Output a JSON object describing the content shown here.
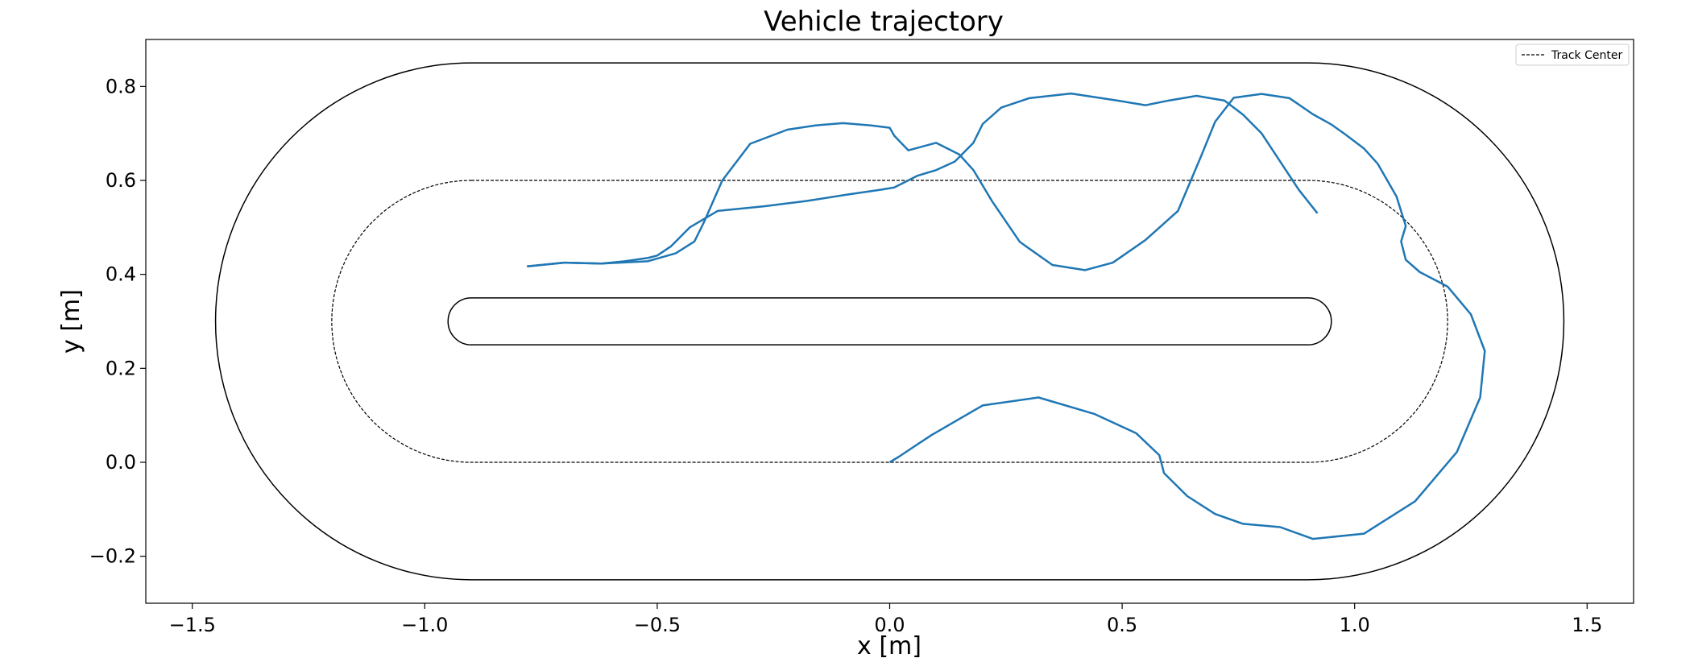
{
  "chart_data": {
    "type": "line",
    "title": "Vehicle trajectory",
    "xlabel": "x [m]",
    "ylabel": "y [m]",
    "xlim": [
      -1.6,
      1.6
    ],
    "ylim": [
      -0.3,
      0.9
    ],
    "xticks": [
      -1.5,
      -1.0,
      -0.5,
      0.0,
      0.5,
      1.0,
      1.5
    ],
    "xtick_labels": [
      "−1.5",
      "−1.0",
      "−0.5",
      "0.0",
      "0.5",
      "1.0",
      "1.5"
    ],
    "yticks": [
      -0.2,
      0.0,
      0.2,
      0.4,
      0.6,
      0.8
    ],
    "ytick_labels": [
      "−0.2",
      "0.0",
      "0.2",
      "0.4",
      "0.6",
      "0.8"
    ],
    "grid": false,
    "legend": {
      "position": "top-right",
      "entries": [
        "Track Center"
      ]
    },
    "track": {
      "inner_boundary": {
        "x_start": -0.9,
        "x_end": 0.9,
        "y_bottom": 0.25,
        "y_top": 0.35,
        "color": "#000000"
      },
      "center_line": {
        "x_start": -0.9,
        "x_end": 0.9,
        "y_bottom": 0.0,
        "y_top": 0.6,
        "color": "#000000",
        "dashed": true
      },
      "outer_boundary": {
        "x_start": -0.9,
        "x_end": 0.9,
        "y_bottom": -0.25,
        "y_top": 0.85,
        "color": "#000000"
      }
    },
    "series": [
      {
        "color": "#1f77b4",
        "x": [
          -0.78,
          -0.7,
          -0.62,
          -0.52,
          -0.46,
          -0.42,
          -0.4,
          -0.36,
          -0.3,
          -0.22,
          -0.16,
          -0.1,
          -0.04,
          0.0,
          0.01,
          0.04,
          0.1,
          0.15,
          0.18,
          0.22,
          0.28,
          0.35,
          0.42,
          0.48,
          0.55,
          0.62,
          0.67,
          0.7,
          0.74,
          0.8,
          0.86,
          0.91,
          0.95,
          0.98,
          1.02,
          1.05,
          1.09,
          1.11,
          1.1,
          1.11,
          1.14,
          1.2,
          1.25,
          1.28,
          1.27,
          1.22,
          1.13,
          1.02,
          0.91,
          0.84,
          0.76,
          0.7,
          0.64,
          0.59,
          0.58,
          0.53,
          0.44,
          0.32,
          0.2,
          0.09,
          0.02,
          0.0
        ],
        "y": [
          0.417,
          0.425,
          0.423,
          0.428,
          0.445,
          0.47,
          0.51,
          0.6,
          0.678,
          0.708,
          0.717,
          0.722,
          0.717,
          0.712,
          0.695,
          0.664,
          0.68,
          0.655,
          0.622,
          0.556,
          0.469,
          0.42,
          0.409,
          0.425,
          0.473,
          0.535,
          0.652,
          0.725,
          0.776,
          0.784,
          0.775,
          0.741,
          0.719,
          0.698,
          0.668,
          0.635,
          0.566,
          0.503,
          0.47,
          0.431,
          0.405,
          0.374,
          0.315,
          0.237,
          0.138,
          0.022,
          -0.083,
          -0.152,
          -0.163,
          -0.138,
          -0.131,
          -0.11,
          -0.072,
          -0.023,
          0.015,
          0.062,
          0.103,
          0.138,
          0.121,
          0.058,
          0.012,
          0.0
        ]
      },
      {
        "color": "#1f77b4",
        "x": [
          -0.78,
          -0.7,
          -0.62,
          -0.57,
          -0.52,
          -0.5,
          -0.47,
          -0.43,
          -0.37,
          -0.27,
          -0.18,
          -0.09,
          -0.02,
          0.01,
          0.03,
          0.06,
          0.1,
          0.14,
          0.18,
          0.2,
          0.24,
          0.3,
          0.39,
          0.49,
          0.55,
          0.6,
          0.66,
          0.72,
          0.76,
          0.8,
          0.84,
          0.88,
          0.92
        ],
        "y": [
          0.417,
          0.425,
          0.423,
          0.428,
          0.435,
          0.44,
          0.46,
          0.5,
          0.535,
          0.545,
          0.556,
          0.57,
          0.58,
          0.585,
          0.595,
          0.61,
          0.622,
          0.64,
          0.68,
          0.72,
          0.755,
          0.775,
          0.785,
          0.77,
          0.76,
          0.77,
          0.78,
          0.77,
          0.74,
          0.7,
          0.64,
          0.58,
          0.53
        ]
      }
    ]
  }
}
